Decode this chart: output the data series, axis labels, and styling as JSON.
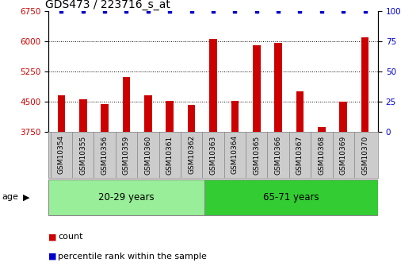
{
  "title": "GDS473 / 223716_s_at",
  "categories": [
    "GSM10354",
    "GSM10355",
    "GSM10356",
    "GSM10359",
    "GSM10360",
    "GSM10361",
    "GSM10362",
    "GSM10363",
    "GSM10364",
    "GSM10365",
    "GSM10366",
    "GSM10367",
    "GSM10368",
    "GSM10369",
    "GSM10370"
  ],
  "bar_values": [
    4650,
    4560,
    4430,
    5100,
    4650,
    4520,
    4410,
    6060,
    4520,
    5900,
    5950,
    4750,
    3870,
    4490,
    6100
  ],
  "percentile_values": [
    100,
    100,
    100,
    100,
    100,
    100,
    100,
    100,
    100,
    100,
    100,
    100,
    100,
    100,
    100
  ],
  "bar_color": "#cc0000",
  "percentile_color": "#0000cc",
  "ylim_left": [
    3750,
    6750
  ],
  "ylim_right": [
    0,
    100
  ],
  "yticks_left": [
    3750,
    4500,
    5250,
    6000,
    6750
  ],
  "yticks_right": [
    0,
    25,
    50,
    75,
    100
  ],
  "grid_values": [
    4500,
    5250,
    6000
  ],
  "group1_label": "20-29 years",
  "group2_label": "65-71 years",
  "group1_count": 7,
  "group2_count": 8,
  "group1_color": "#99ee99",
  "group2_color": "#33cc33",
  "age_label": "age",
  "legend_count_label": "count",
  "legend_percentile_label": "percentile rank within the sample",
  "title_fontsize": 10,
  "tick_fontsize": 7.5,
  "label_fontsize": 8,
  "xtick_bg_color": "#cccccc",
  "plot_bg_color": "#ffffff"
}
